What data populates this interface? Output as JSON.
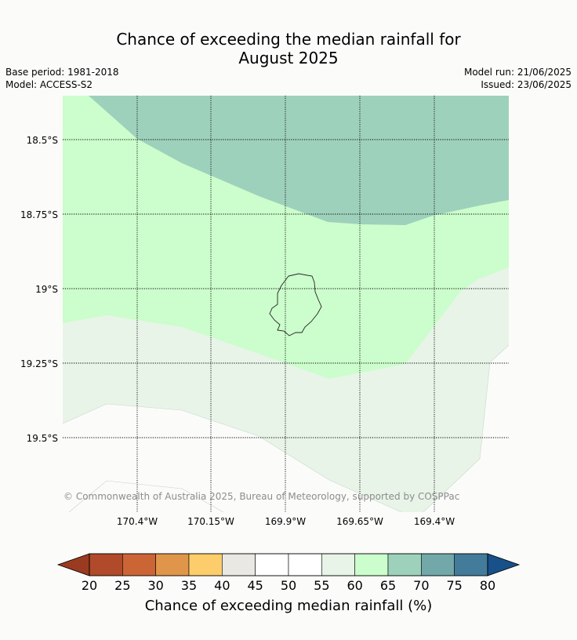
{
  "title_line1": "Chance of exceeding the median rainfall for",
  "title_line2": "August 2025",
  "base_period": "Base period: 1981-2018",
  "model": "Model: ACCESS-S2",
  "model_run": "Model run: 21/06/2025",
  "issued": "Issued: 23/06/2025",
  "copyright": "© Commonwealth of Australia 2025, Bureau of Meteorology, supported by COSPPac",
  "lat_labels": [
    "18.5°S",
    "18.75°S",
    "19°S",
    "19.25°S",
    "19.5°S"
  ],
  "lon_labels": [
    "170.4°W",
    "170.15°W",
    "169.9°W",
    "169.65°W",
    "169.4°W"
  ],
  "colorbar": {
    "label": "Chance of exceeding median rainfall (%)",
    "ticks": [
      "20",
      "25",
      "30",
      "35",
      "40",
      "45",
      "50",
      "55",
      "60",
      "65",
      "70",
      "75",
      "80"
    ],
    "colors": [
      "#b04a2a",
      "#cc6536",
      "#e0964a",
      "#fdcd6b",
      "#eae8e3",
      "#ffffff",
      "#ffffff",
      "#e8f4e8",
      "#ccfdcc",
      "#9ed1bb",
      "#72a8aa",
      "#437b9b"
    ],
    "under_color": "#9a3a20",
    "over_color": "#18508a"
  },
  "regions": [
    {
      "name": "65-70%",
      "color": "#9ed1bb"
    },
    {
      "name": "60-65%",
      "color": "#ccfdcc"
    },
    {
      "name": "55-60%",
      "color": "#e8f4e8"
    },
    {
      "name": "45-55%",
      "color": "#fbfcfa"
    }
  ]
}
